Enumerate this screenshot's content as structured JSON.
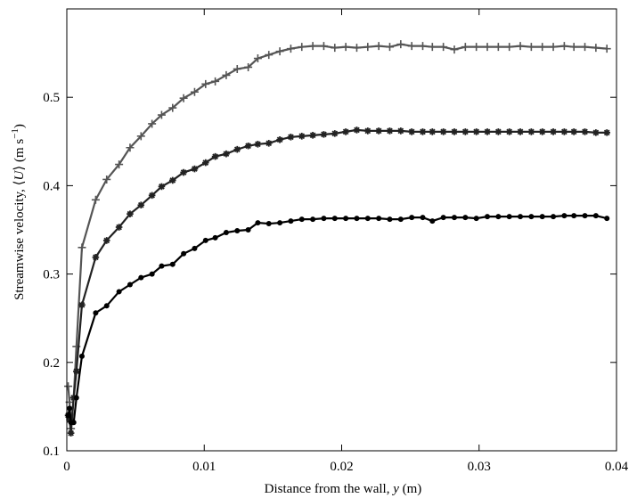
{
  "chart_data": {
    "type": "line",
    "xlabel": "Distance from the wall, y (m)",
    "ylabel": "Streamwise velocity, ⟨U⟩ (m s⁻¹)",
    "xlim": [
      0,
      0.04
    ],
    "ylim": [
      0.1,
      0.6
    ],
    "x_ticks": [
      0,
      0.01,
      0.02,
      0.03,
      0.04
    ],
    "x_tick_labels": [
      "0",
      "0.01",
      "0.02",
      "0.03",
      "0.04"
    ],
    "y_ticks": [
      0.1,
      0.2,
      0.3,
      0.4,
      0.5
    ],
    "y_tick_labels": [
      "0.1",
      "0.2",
      "0.3",
      "0.4",
      "0.5"
    ],
    "grid": false,
    "legend": "none",
    "series": [
      {
        "marker": "plus",
        "color": "#555555",
        "x": [
          0.0001,
          0.0002,
          0.0003,
          0.0005,
          0.0007,
          0.0011,
          0.0021,
          0.0029,
          0.0038,
          0.0046,
          0.0054,
          0.0062,
          0.0069,
          0.0077,
          0.0085,
          0.0093,
          0.0101,
          0.0108,
          0.0116,
          0.0124,
          0.0132,
          0.0139,
          0.0147,
          0.0155,
          0.0163,
          0.0171,
          0.0179,
          0.0187,
          0.0195,
          0.0203,
          0.0211,
          0.0219,
          0.0227,
          0.0235,
          0.0243,
          0.0251,
          0.0259,
          0.0266,
          0.0274,
          0.0282,
          0.029,
          0.0298,
          0.0306,
          0.0314,
          0.0322,
          0.033,
          0.0338,
          0.0346,
          0.0354,
          0.0362,
          0.0369,
          0.0377,
          0.0385,
          0.0393
        ],
        "y": [
          0.173,
          0.155,
          0.125,
          0.16,
          0.218,
          0.33,
          0.384,
          0.407,
          0.424,
          0.443,
          0.456,
          0.47,
          0.48,
          0.488,
          0.499,
          0.506,
          0.515,
          0.518,
          0.525,
          0.532,
          0.534,
          0.544,
          0.548,
          0.552,
          0.555,
          0.557,
          0.558,
          0.558,
          0.556,
          0.557,
          0.556,
          0.557,
          0.558,
          0.557,
          0.56,
          0.558,
          0.558,
          0.557,
          0.557,
          0.554,
          0.557,
          0.557,
          0.557,
          0.557,
          0.557,
          0.558,
          0.557,
          0.557,
          0.557,
          0.558,
          0.557,
          0.557,
          0.556,
          0.555
        ]
      },
      {
        "marker": "asterisk",
        "color": "#222222",
        "x": [
          0.0001,
          0.0002,
          0.0003,
          0.0005,
          0.0007,
          0.0011,
          0.0021,
          0.0029,
          0.0038,
          0.0046,
          0.0054,
          0.0062,
          0.0069,
          0.0077,
          0.0085,
          0.0093,
          0.0101,
          0.0108,
          0.0116,
          0.0124,
          0.0132,
          0.0139,
          0.0147,
          0.0155,
          0.0163,
          0.0171,
          0.0179,
          0.0187,
          0.0195,
          0.0203,
          0.0211,
          0.0219,
          0.0227,
          0.0235,
          0.0243,
          0.0251,
          0.0259,
          0.0266,
          0.0274,
          0.0282,
          0.029,
          0.0298,
          0.0306,
          0.0314,
          0.0322,
          0.033,
          0.0338,
          0.0346,
          0.0354,
          0.0362,
          0.0369,
          0.0377,
          0.0385,
          0.0393
        ],
        "y": [
          0.14,
          0.135,
          0.12,
          0.16,
          0.19,
          0.265,
          0.319,
          0.338,
          0.353,
          0.368,
          0.378,
          0.389,
          0.399,
          0.406,
          0.415,
          0.419,
          0.426,
          0.433,
          0.436,
          0.441,
          0.445,
          0.447,
          0.448,
          0.452,
          0.455,
          0.456,
          0.457,
          0.458,
          0.459,
          0.461,
          0.463,
          0.462,
          0.462,
          0.462,
          0.462,
          0.461,
          0.461,
          0.461,
          0.461,
          0.461,
          0.461,
          0.461,
          0.461,
          0.461,
          0.461,
          0.461,
          0.461,
          0.461,
          0.461,
          0.461,
          0.461,
          0.461,
          0.46,
          0.46
        ]
      },
      {
        "marker": "dot",
        "color": "#000000",
        "x": [
          0.0001,
          0.0002,
          0.0003,
          0.0005,
          0.0007,
          0.0011,
          0.0021,
          0.0029,
          0.0038,
          0.0046,
          0.0054,
          0.0062,
          0.0069,
          0.0077,
          0.0085,
          0.0093,
          0.0101,
          0.0108,
          0.0116,
          0.0124,
          0.0132,
          0.0139,
          0.0147,
          0.0155,
          0.0163,
          0.0171,
          0.0179,
          0.0187,
          0.0195,
          0.0203,
          0.0211,
          0.0219,
          0.0227,
          0.0235,
          0.0243,
          0.0251,
          0.0259,
          0.0266,
          0.0274,
          0.0282,
          0.029,
          0.0298,
          0.0306,
          0.0314,
          0.0322,
          0.033,
          0.0338,
          0.0346,
          0.0354,
          0.0362,
          0.0369,
          0.0377,
          0.0385,
          0.0393
        ],
        "y": [
          0.14,
          0.148,
          0.132,
          0.132,
          0.16,
          0.207,
          0.256,
          0.264,
          0.28,
          0.288,
          0.296,
          0.3,
          0.309,
          0.311,
          0.323,
          0.329,
          0.338,
          0.341,
          0.347,
          0.349,
          0.35,
          0.358,
          0.357,
          0.358,
          0.36,
          0.362,
          0.362,
          0.363,
          0.363,
          0.363,
          0.363,
          0.363,
          0.363,
          0.362,
          0.362,
          0.364,
          0.364,
          0.36,
          0.364,
          0.364,
          0.364,
          0.363,
          0.365,
          0.365,
          0.365,
          0.365,
          0.365,
          0.365,
          0.365,
          0.366,
          0.366,
          0.366,
          0.366,
          0.363
        ]
      }
    ]
  }
}
